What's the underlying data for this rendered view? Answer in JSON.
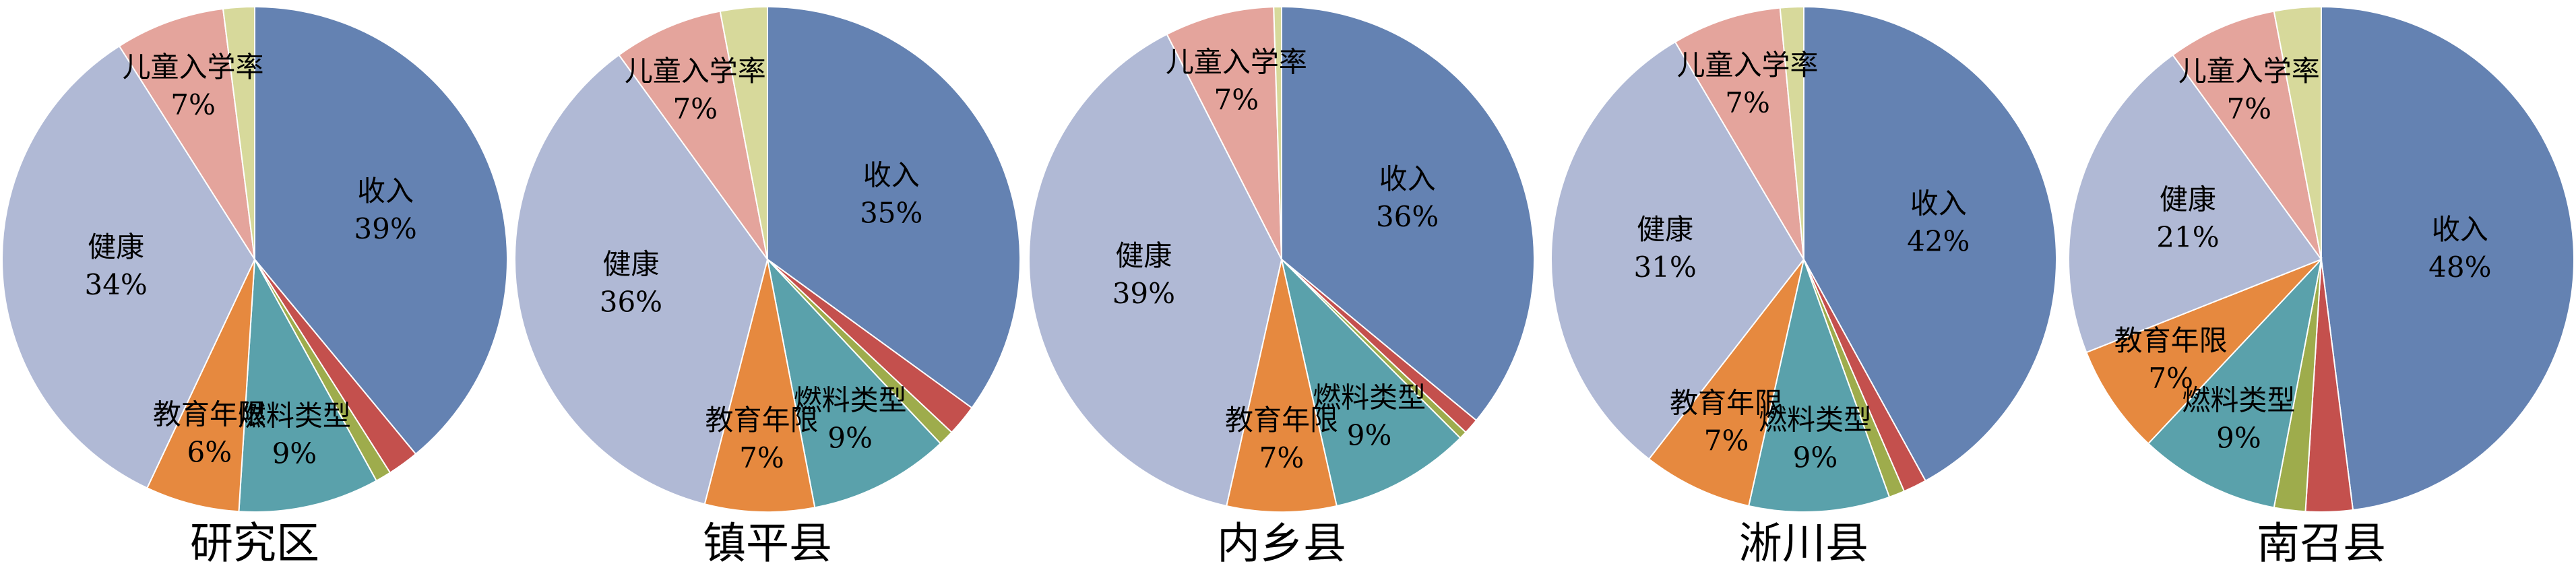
{
  "chart_data": [
    {
      "type": "pie",
      "title": "研究区",
      "categories": [
        "收入",
        null,
        null,
        "燃料类型",
        "教育年限",
        "健康",
        "儿童入学率",
        null
      ],
      "values": [
        39,
        2,
        1,
        9,
        6,
        34,
        7,
        2
      ],
      "value_labels": [
        "39%",
        null,
        null,
        "9%",
        "6%",
        "34%",
        "7%",
        null
      ],
      "colors": [
        "#6482b2",
        "#c4504d",
        "#9eac4c",
        "#5aa1ab",
        "#e6893f",
        "#b0b9d5",
        "#e4a49c",
        "#d7d99b"
      ]
    },
    {
      "type": "pie",
      "title": "镇平县",
      "categories": [
        "收入",
        null,
        null,
        "燃料类型",
        "教育年限",
        "健康",
        "儿童入学率",
        null
      ],
      "values": [
        35,
        2,
        1,
        9,
        7,
        36,
        7,
        3
      ],
      "value_labels": [
        "35%",
        null,
        null,
        "9%",
        "7%",
        "36%",
        "7%",
        null
      ],
      "colors": [
        "#6482b2",
        "#c4504d",
        "#9eac4c",
        "#5aa1ab",
        "#e6893f",
        "#b0b9d5",
        "#e4a49c",
        "#d7d99b"
      ]
    },
    {
      "type": "pie",
      "title": "内乡县",
      "categories": [
        "收入",
        null,
        null,
        "燃料类型",
        "教育年限",
        "健康",
        "儿童入学率",
        null
      ],
      "values": [
        36,
        1,
        0.5,
        9,
        7,
        39,
        7,
        0.5
      ],
      "value_labels": [
        "36%",
        null,
        null,
        "9%",
        "7%",
        "39%",
        "7%",
        null
      ],
      "colors": [
        "#6482b2",
        "#c4504d",
        "#9eac4c",
        "#5aa1ab",
        "#e6893f",
        "#b0b9d5",
        "#e4a49c",
        "#d7d99b"
      ]
    },
    {
      "type": "pie",
      "title": "淅川县",
      "categories": [
        "收入",
        null,
        null,
        "燃料类型",
        "教育年限",
        "健康",
        "儿童入学率",
        null
      ],
      "values": [
        42,
        1.5,
        1,
        9,
        7,
        31,
        7,
        1.5
      ],
      "value_labels": [
        "42%",
        null,
        null,
        "9%",
        "7%",
        "31%",
        "7%",
        null
      ],
      "colors": [
        "#6482b2",
        "#c4504d",
        "#9eac4c",
        "#5aa1ab",
        "#e6893f",
        "#b0b9d5",
        "#e4a49c",
        "#d7d99b"
      ]
    },
    {
      "type": "pie",
      "title": "南召县",
      "categories": [
        "收入",
        null,
        null,
        "燃料类型",
        "教育年限",
        "健康",
        "儿童入学率",
        null
      ],
      "values": [
        48,
        3,
        2,
        9,
        7,
        21,
        7,
        3
      ],
      "value_labels": [
        "48%",
        null,
        null,
        "9%",
        "7%",
        "21%",
        "7%",
        null
      ],
      "colors": [
        "#6482b2",
        "#c4504d",
        "#9eac4c",
        "#5aa1ab",
        "#e6893f",
        "#b0b9d5",
        "#e4a49c",
        "#d7d99b"
      ]
    }
  ]
}
